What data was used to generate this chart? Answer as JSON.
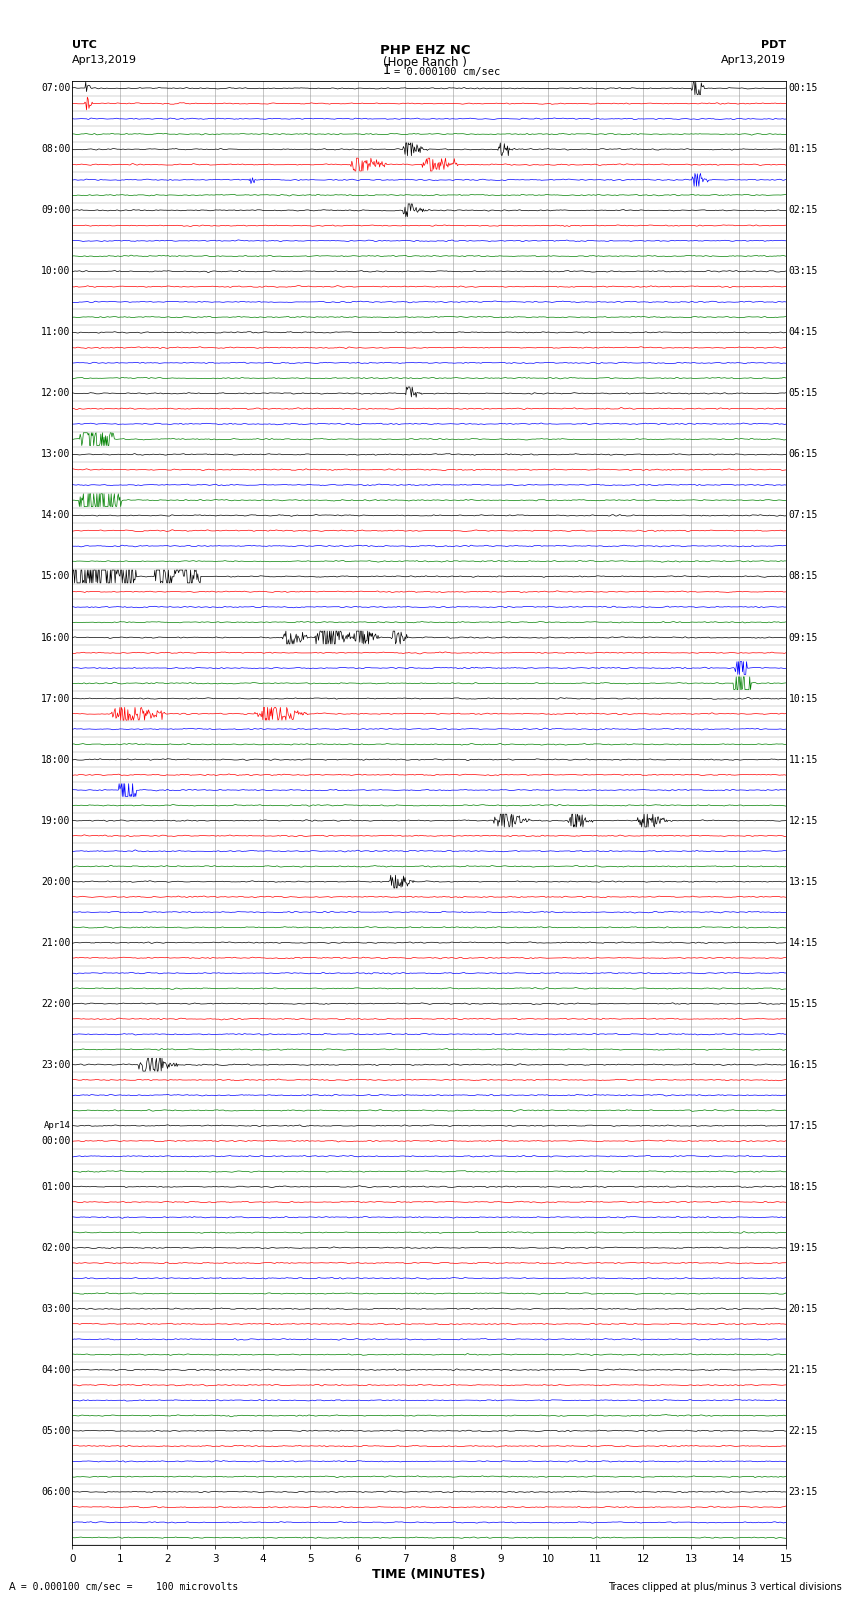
{
  "title_line1": "PHP EHZ NC",
  "title_line2": "(Hope Ranch )",
  "scale_label": "I = 0.000100 cm/sec",
  "left_header_line1": "UTC",
  "left_header_line2": "Apr13,2019",
  "right_header_line1": "PDT",
  "right_header_line2": "Apr13,2019",
  "xlabel": "TIME (MINUTES)",
  "footer_left": " = 0.000100 cm/sec =    100 microvolts",
  "footer_right": "Traces clipped at plus/minus 3 vertical divisions",
  "utc_labels": [
    "07:00",
    "",
    "",
    "",
    "08:00",
    "",
    "",
    "",
    "09:00",
    "",
    "",
    "",
    "10:00",
    "",
    "",
    "",
    "11:00",
    "",
    "",
    "",
    "12:00",
    "",
    "",
    "",
    "13:00",
    "",
    "",
    "",
    "14:00",
    "",
    "",
    "",
    "15:00",
    "",
    "",
    "",
    "16:00",
    "",
    "",
    "",
    "17:00",
    "",
    "",
    "",
    "18:00",
    "",
    "",
    "",
    "19:00",
    "",
    "",
    "",
    "20:00",
    "",
    "",
    "",
    "21:00",
    "",
    "",
    "",
    "22:00",
    "",
    "",
    "",
    "23:00",
    "",
    "",
    "",
    "Apr14",
    "00:00",
    "",
    "",
    "01:00",
    "",
    "",
    "",
    "02:00",
    "",
    "",
    "",
    "03:00",
    "",
    "",
    "",
    "04:00",
    "",
    "",
    "",
    "05:00",
    "",
    "",
    "",
    "06:00",
    "",
    "",
    ""
  ],
  "pdt_labels": [
    "00:15",
    "",
    "",
    "",
    "01:15",
    "",
    "",
    "",
    "02:15",
    "",
    "",
    "",
    "03:15",
    "",
    "",
    "",
    "04:15",
    "",
    "",
    "",
    "05:15",
    "",
    "",
    "",
    "06:15",
    "",
    "",
    "",
    "07:15",
    "",
    "",
    "",
    "08:15",
    "",
    "",
    "",
    "09:15",
    "",
    "",
    "",
    "10:15",
    "",
    "",
    "",
    "11:15",
    "",
    "",
    "",
    "12:15",
    "",
    "",
    "",
    "13:15",
    "",
    "",
    "",
    "14:15",
    "",
    "",
    "",
    "15:15",
    "",
    "",
    "",
    "16:15",
    "",
    "",
    "",
    "17:15",
    "",
    "",
    "",
    "18:15",
    "",
    "",
    "",
    "19:15",
    "",
    "",
    "",
    "20:15",
    "",
    "",
    "",
    "21:15",
    "",
    "",
    "",
    "22:15",
    "",
    "",
    "",
    "23:15",
    "",
    "",
    ""
  ],
  "n_rows": 96,
  "n_cols": 15,
  "trace_colors": [
    "black",
    "red",
    "blue",
    "green"
  ],
  "bg_color": "white",
  "grid_color": "#999999",
  "figsize": [
    8.5,
    16.13
  ],
  "dpi": 100
}
